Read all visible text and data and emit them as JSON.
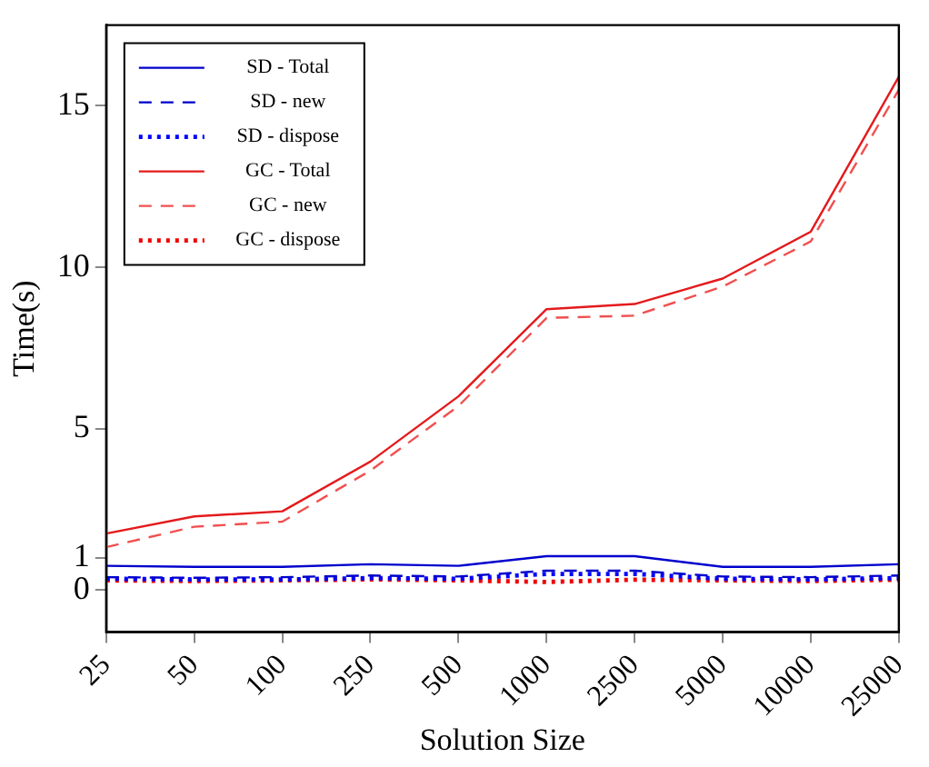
{
  "chart_data": {
    "type": "line",
    "xlabel": "Solution Size",
    "ylabel": "Time(s)",
    "categories": [
      "25",
      "50",
      "100",
      "250",
      "500",
      "1000",
      "2500",
      "5000",
      "10000",
      "25000"
    ],
    "ylim": [
      -1.3,
      17.5
    ],
    "yticks": [
      0,
      1,
      5,
      10,
      15
    ],
    "grid": false,
    "legend": "top left",
    "marker": "none",
    "series": [
      {
        "name": "SD - Total",
        "color": "#0000cc",
        "line_style": "solid",
        "values": [
          0.75,
          0.72,
          0.72,
          0.8,
          0.75,
          1.05,
          1.05,
          0.72,
          0.72,
          0.8
        ]
      },
      {
        "name": "SD - new",
        "color": "#0000cc",
        "line_style": "dashed",
        "values": [
          0.4,
          0.38,
          0.4,
          0.45,
          0.42,
          0.6,
          0.6,
          0.42,
          0.4,
          0.45
        ]
      },
      {
        "name": "SD - dispose",
        "color": "#0000ff",
        "line_style": "dotted",
        "values": [
          0.35,
          0.33,
          0.33,
          0.37,
          0.35,
          0.5,
          0.5,
          0.35,
          0.33,
          0.37
        ]
      },
      {
        "name": "GC - Total",
        "color": "#e41a1c",
        "line_style": "solid",
        "values": [
          1.75,
          2.28,
          2.44,
          3.98,
          6.0,
          8.7,
          8.86,
          9.65,
          11.1,
          15.9
        ]
      },
      {
        "name": "GC - new",
        "color": "#f05050",
        "line_style": "dashed",
        "values": [
          1.33,
          1.96,
          2.12,
          3.7,
          5.7,
          8.43,
          8.5,
          9.4,
          10.8,
          15.5
        ]
      },
      {
        "name": "GC - dispose",
        "color": "#ee0000",
        "line_style": "dotted",
        "values": [
          0.3,
          0.28,
          0.3,
          0.33,
          0.3,
          0.25,
          0.32,
          0.3,
          0.28,
          0.32
        ]
      }
    ]
  }
}
